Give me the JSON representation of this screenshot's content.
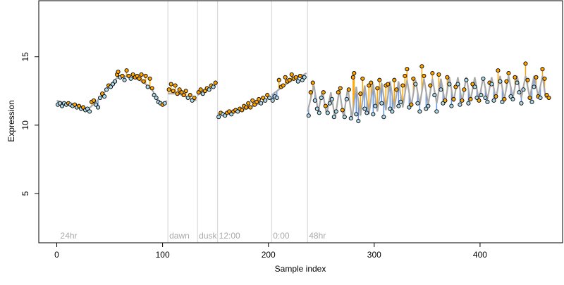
{
  "chart_data": {
    "type": "scatter",
    "xlabel": "Sample index",
    "ylabel": "Expression",
    "xlim": [
      -17,
      478
    ],
    "ylim": [
      1.4,
      19.1
    ],
    "x_ticks": [
      0,
      100,
      200,
      300,
      400
    ],
    "y_ticks": [
      5,
      10,
      15
    ],
    "segments": [
      {
        "x": 2,
        "label": "24hr"
      },
      {
        "x": 105,
        "label": "dawn"
      },
      {
        "x": 133,
        "label": "dusk"
      },
      {
        "x": 152,
        "label": "12:00"
      },
      {
        "x": 203,
        "label": "0:00"
      },
      {
        "x": 237,
        "label": "48hr"
      }
    ],
    "colors": {
      "point_fill_low": "#add8e6",
      "point_fill_high": "#ffa500",
      "residual_low": "#6495ed",
      "residual_high": "#ffa500",
      "fit_line": "#a9a9a9",
      "segment_line": "#d3d3d3"
    },
    "fitted_curve": [
      [
        0,
        11.8
      ],
      [
        8,
        11.6
      ],
      [
        16,
        11.5
      ],
      [
        24,
        11.3
      ],
      [
        30,
        11.2
      ],
      [
        36,
        11.6
      ],
      [
        44,
        12.3
      ],
      [
        50,
        12.9
      ],
      [
        56,
        13.4
      ],
      [
        62,
        13.6
      ],
      [
        70,
        13.5
      ],
      [
        78,
        13.3
      ],
      [
        84,
        13.0
      ],
      [
        90,
        12.6
      ],
      [
        96,
        11.8
      ],
      [
        100,
        11.5
      ],
      [
        104,
        11.8
      ],
      [
        105,
        12.3
      ],
      [
        115,
        12.3
      ],
      [
        125,
        12.0
      ],
      [
        132,
        11.8
      ],
      [
        133,
        12.2
      ],
      [
        140,
        12.5
      ],
      [
        146,
        12.7
      ],
      [
        151,
        13.0
      ],
      [
        152,
        10.8
      ],
      [
        165,
        10.9
      ],
      [
        180,
        11.2
      ],
      [
        195,
        11.7
      ],
      [
        202,
        12.1
      ],
      [
        203,
        12.2
      ],
      [
        215,
        12.9
      ],
      [
        225,
        13.4
      ],
      [
        236,
        13.8
      ],
      [
        237,
        11.0
      ],
      [
        243,
        12.9
      ],
      [
        247,
        11.0
      ],
      [
        251,
        12.5
      ],
      [
        255,
        10.8
      ],
      [
        259,
        12.4
      ],
      [
        263,
        10.5
      ],
      [
        267,
        12.6
      ],
      [
        271,
        10.6
      ],
      [
        275,
        12.7
      ],
      [
        279,
        10.5
      ],
      [
        283,
        12.8
      ],
      [
        287,
        10.7
      ],
      [
        291,
        12.9
      ],
      [
        295,
        10.8
      ],
      [
        299,
        13.0
      ],
      [
        303,
        11.0
      ],
      [
        307,
        13.1
      ],
      [
        311,
        11.1
      ],
      [
        315,
        13.2
      ],
      [
        319,
        11.2
      ],
      [
        323,
        13.2
      ],
      [
        327,
        11.3
      ],
      [
        331,
        13.3
      ],
      [
        335,
        11.4
      ],
      [
        339,
        13.3
      ],
      [
        343,
        11.5
      ],
      [
        347,
        13.4
      ],
      [
        351,
        11.5
      ],
      [
        355,
        13.4
      ],
      [
        359,
        11.6
      ],
      [
        363,
        13.4
      ],
      [
        367,
        11.6
      ],
      [
        371,
        13.5
      ],
      [
        375,
        11.7
      ],
      [
        379,
        13.5
      ],
      [
        383,
        11.7
      ],
      [
        387,
        13.5
      ],
      [
        391,
        11.8
      ],
      [
        395,
        13.5
      ],
      [
        399,
        11.8
      ],
      [
        403,
        13.5
      ],
      [
        407,
        11.9
      ],
      [
        411,
        13.5
      ],
      [
        415,
        11.9
      ],
      [
        419,
        13.6
      ],
      [
        423,
        11.9
      ],
      [
        427,
        13.6
      ],
      [
        431,
        12.0
      ],
      [
        435,
        13.6
      ],
      [
        439,
        12.0
      ],
      [
        443,
        13.6
      ],
      [
        447,
        12.0
      ],
      [
        451,
        13.6
      ],
      [
        455,
        12.1
      ],
      [
        459,
        13.6
      ],
      [
        462,
        12.0
      ]
    ],
    "points": [
      [
        1,
        11.5
      ],
      [
        3,
        11.6
      ],
      [
        5,
        11.4
      ],
      [
        7,
        11.6
      ],
      [
        9,
        11.5
      ],
      [
        11,
        11.6
      ],
      [
        13,
        11.5
      ],
      [
        15,
        11.4
      ],
      [
        17,
        11.5
      ],
      [
        19,
        11.3
      ],
      [
        21,
        11.4
      ],
      [
        23,
        11.2
      ],
      [
        25,
        11.3
      ],
      [
        27,
        11.1
      ],
      [
        29,
        11.2
      ],
      [
        31,
        11.0
      ],
      [
        33,
        11.7
      ],
      [
        35,
        11.8
      ],
      [
        37,
        11.5
      ],
      [
        39,
        11.3
      ],
      [
        41,
        12.0
      ],
      [
        43,
        12.3
      ],
      [
        45,
        12.1
      ],
      [
        47,
        12.6
      ],
      [
        49,
        12.9
      ],
      [
        51,
        12.8
      ],
      [
        53,
        13.0
      ],
      [
        55,
        13.2
      ],
      [
        57,
        13.7
      ],
      [
        58,
        13.9
      ],
      [
        60,
        13.5
      ],
      [
        62,
        13.6
      ],
      [
        64,
        13.3
      ],
      [
        66,
        14.0
      ],
      [
        68,
        13.6
      ],
      [
        70,
        13.4
      ],
      [
        72,
        13.7
      ],
      [
        74,
        13.5
      ],
      [
        76,
        13.6
      ],
      [
        78,
        13.4
      ],
      [
        80,
        13.7
      ],
      [
        82,
        13.2
      ],
      [
        84,
        13.6
      ],
      [
        86,
        12.8
      ],
      [
        88,
        13.4
      ],
      [
        90,
        12.7
      ],
      [
        92,
        12.2
      ],
      [
        94,
        12.0
      ],
      [
        96,
        11.7
      ],
      [
        98,
        11.6
      ],
      [
        100,
        11.5
      ],
      [
        102,
        11.6
      ],
      [
        106,
        12.6
      ],
      [
        108,
        13.0
      ],
      [
        110,
        12.5
      ],
      [
        112,
        12.9
      ],
      [
        114,
        12.3
      ],
      [
        116,
        12.6
      ],
      [
        118,
        12.4
      ],
      [
        120,
        12.2
      ],
      [
        122,
        12.5
      ],
      [
        124,
        12.0
      ],
      [
        126,
        12.2
      ],
      [
        128,
        11.8
      ],
      [
        130,
        12.0
      ],
      [
        134,
        12.4
      ],
      [
        136,
        12.6
      ],
      [
        138,
        12.3
      ],
      [
        140,
        12.5
      ],
      [
        142,
        12.7
      ],
      [
        144,
        12.6
      ],
      [
        146,
        12.9
      ],
      [
        148,
        12.8
      ],
      [
        150,
        13.1
      ],
      [
        153,
        10.6
      ],
      [
        155,
        10.9
      ],
      [
        157,
        10.8
      ],
      [
        159,
        10.7
      ],
      [
        161,
        10.9
      ],
      [
        163,
        11.0
      ],
      [
        165,
        10.8
      ],
      [
        167,
        11.0
      ],
      [
        169,
        11.1
      ],
      [
        171,
        11.0
      ],
      [
        173,
        11.2
      ],
      [
        175,
        11.1
      ],
      [
        177,
        11.4
      ],
      [
        179,
        11.3
      ],
      [
        181,
        11.6
      ],
      [
        183,
        11.3
      ],
      [
        185,
        11.8
      ],
      [
        187,
        11.5
      ],
      [
        189,
        11.7
      ],
      [
        191,
        11.9
      ],
      [
        193,
        11.6
      ],
      [
        195,
        12.0
      ],
      [
        197,
        11.8
      ],
      [
        199,
        12.2
      ],
      [
        201,
        12.0
      ],
      [
        204,
        11.8
      ],
      [
        206,
        12.1
      ],
      [
        208,
        12.0
      ],
      [
        210,
        13.3
      ],
      [
        212,
        12.8
      ],
      [
        214,
        12.9
      ],
      [
        216,
        13.5
      ],
      [
        218,
        13.2
      ],
      [
        220,
        13.3
      ],
      [
        222,
        13.7
      ],
      [
        224,
        13.4
      ],
      [
        226,
        13.5
      ],
      [
        228,
        13.2
      ],
      [
        230,
        13.6
      ],
      [
        232,
        13.3
      ],
      [
        234,
        13.5
      ],
      [
        238,
        10.7
      ],
      [
        240,
        12.4
      ],
      [
        242,
        13.1
      ],
      [
        244,
        11.8
      ],
      [
        246,
        11.2
      ],
      [
        248,
        10.9
      ],
      [
        250,
        12.0
      ],
      [
        252,
        12.4
      ],
      [
        254,
        11.4
      ],
      [
        256,
        10.9
      ],
      [
        258,
        11.6
      ],
      [
        260,
        11.9
      ],
      [
        262,
        10.6
      ],
      [
        264,
        11.0
      ],
      [
        266,
        12.4
      ],
      [
        268,
        12.7
      ],
      [
        270,
        11.1
      ],
      [
        272,
        10.6
      ],
      [
        274,
        11.9
      ],
      [
        276,
        12.6
      ],
      [
        278,
        10.5
      ],
      [
        280,
        13.5
      ],
      [
        281,
        13.8
      ],
      [
        283,
        10.8
      ],
      [
        285,
        10.3
      ],
      [
        287,
        12.3
      ],
      [
        289,
        13.4
      ],
      [
        291,
        11.2
      ],
      [
        293,
        10.9
      ],
      [
        295,
        12.9
      ],
      [
        297,
        13.1
      ],
      [
        299,
        10.8
      ],
      [
        301,
        11.4
      ],
      [
        303,
        12.7
      ],
      [
        305,
        13.3
      ],
      [
        307,
        11.6
      ],
      [
        309,
        10.6
      ],
      [
        311,
        12.9
      ],
      [
        313,
        13.0
      ],
      [
        315,
        11.2
      ],
      [
        317,
        11.0
      ],
      [
        319,
        13.3
      ],
      [
        321,
        12.6
      ],
      [
        323,
        11.4
      ],
      [
        325,
        11.7
      ],
      [
        327,
        12.9
      ],
      [
        329,
        13.6
      ],
      [
        331,
        14.1
      ],
      [
        333,
        11.3
      ],
      [
        335,
        11.5
      ],
      [
        337,
        13.4
      ],
      [
        339,
        13.0
      ],
      [
        341,
        11.6
      ],
      [
        343,
        11.0
      ],
      [
        345,
        14.3
      ],
      [
        347,
        13.6
      ],
      [
        349,
        11.2
      ],
      [
        351,
        11.4
      ],
      [
        353,
        12.9
      ],
      [
        355,
        13.8
      ],
      [
        357,
        12.2
      ],
      [
        359,
        11.0
      ],
      [
        361,
        13.7
      ],
      [
        363,
        12.6
      ],
      [
        365,
        11.6
      ],
      [
        367,
        11.8
      ],
      [
        369,
        13.5
      ],
      [
        371,
        13.0
      ],
      [
        373,
        11.4
      ],
      [
        375,
        11.9
      ],
      [
        377,
        12.8
      ],
      [
        379,
        13.0
      ],
      [
        381,
        11.5
      ],
      [
        383,
        11.8
      ],
      [
        385,
        12.6
      ],
      [
        387,
        13.3
      ],
      [
        389,
        11.6
      ],
      [
        391,
        11.9
      ],
      [
        393,
        13.0
      ],
      [
        395,
        12.8
      ],
      [
        397,
        12.0
      ],
      [
        399,
        11.8
      ],
      [
        401,
        12.2
      ],
      [
        403,
        13.4
      ],
      [
        405,
        12.0
      ],
      [
        407,
        11.7
      ],
      [
        409,
        13.1
      ],
      [
        411,
        13.0
      ],
      [
        413,
        11.8
      ],
      [
        415,
        12.1
      ],
      [
        417,
        14.0
      ],
      [
        419,
        13.2
      ],
      [
        421,
        11.7
      ],
      [
        423,
        11.9
      ],
      [
        425,
        13.2
      ],
      [
        427,
        13.8
      ],
      [
        429,
        12.1
      ],
      [
        431,
        11.9
      ],
      [
        433,
        13.5
      ],
      [
        435,
        13.1
      ],
      [
        437,
        12.4
      ],
      [
        439,
        11.6
      ],
      [
        441,
        12.6
      ],
      [
        443,
        14.5
      ],
      [
        445,
        13.3
      ],
      [
        447,
        12.0
      ],
      [
        449,
        11.7
      ],
      [
        451,
        12.8
      ],
      [
        453,
        13.5
      ],
      [
        455,
        12.1
      ],
      [
        457,
        12.0
      ],
      [
        459,
        14.1
      ],
      [
        461,
        13.4
      ],
      [
        463,
        12.2
      ],
      [
        465,
        12.0
      ]
    ]
  }
}
